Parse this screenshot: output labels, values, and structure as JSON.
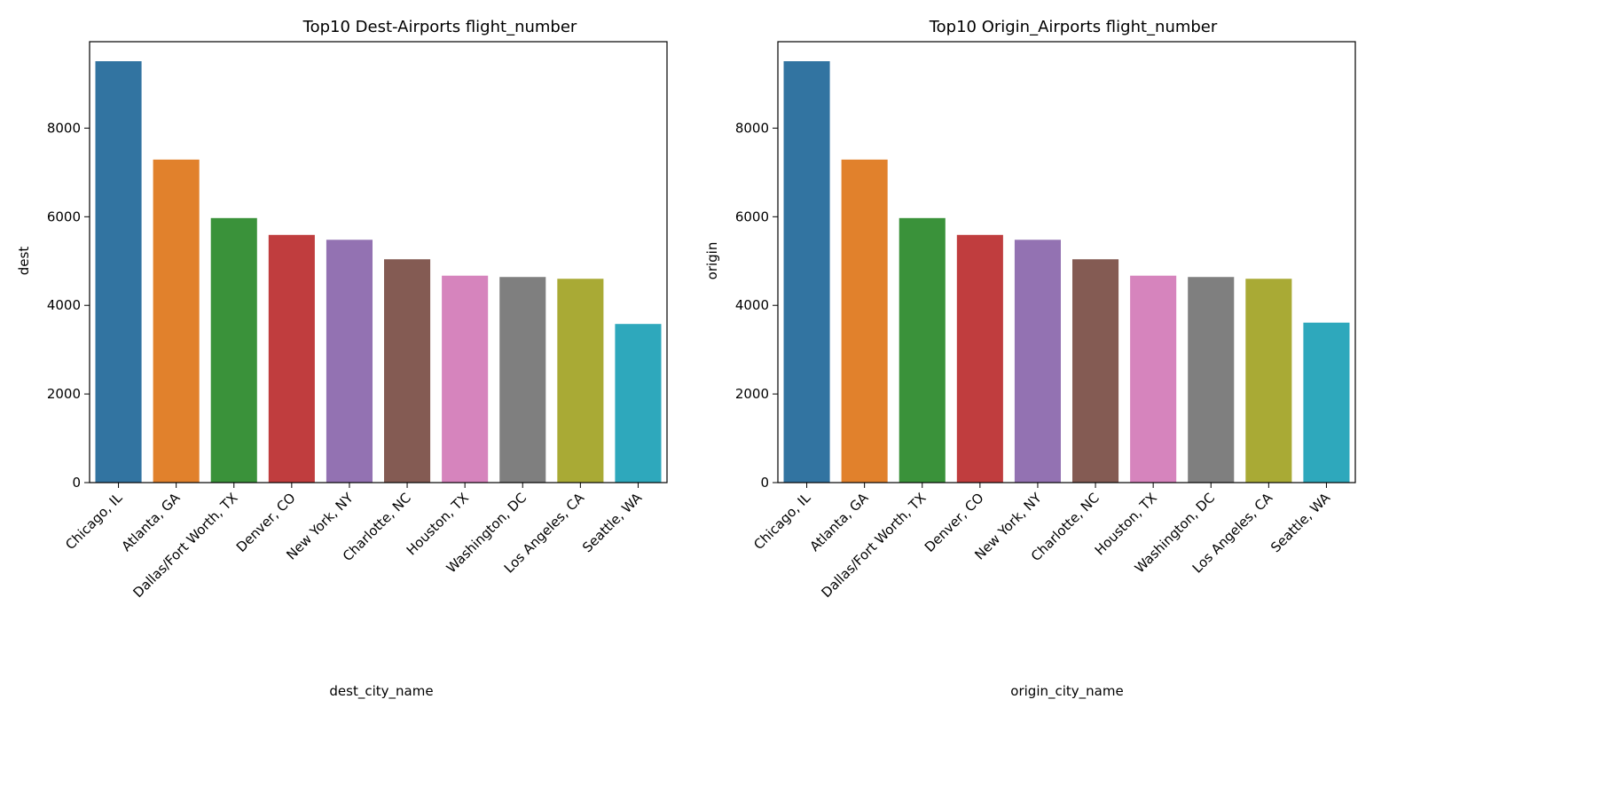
{
  "top_fragment": "",
  "chart_data": [
    {
      "type": "bar",
      "title": "Top10 Dest-Airports flight_number",
      "xlabel": "dest_city_name",
      "ylabel": "dest",
      "categories": [
        "Chicago, IL",
        "Atlanta, GA",
        "Dallas/Fort Worth, TX",
        "Denver, CO",
        "New York, NY",
        "Charlotte, NC",
        "Houston, TX",
        "Washington, DC",
        "Los Angeles, CA",
        "Seattle, WA"
      ],
      "values": [
        9510,
        7290,
        5970,
        5590,
        5480,
        5040,
        4670,
        4640,
        4600,
        3580
      ],
      "ylim": [
        0,
        9510
      ],
      "yticks": [
        0,
        2000,
        4000,
        6000,
        8000
      ],
      "colors": [
        "#3274a1",
        "#e1812c",
        "#3a923a",
        "#c03d3e",
        "#9372b2",
        "#845b53",
        "#d684bd",
        "#7f7f7f",
        "#a9aa35",
        "#2ea8bc"
      ],
      "grid": false,
      "legend": "none"
    },
    {
      "type": "bar",
      "title": "Top10 Origin_Airports flight_number",
      "xlabel": "origin_city_name",
      "ylabel": "origin",
      "categories": [
        "Chicago, IL",
        "Atlanta, GA",
        "Dallas/Fort Worth, TX",
        "Denver, CO",
        "New York, NY",
        "Charlotte, NC",
        "Houston, TX",
        "Washington, DC",
        "Los Angeles, CA",
        "Seattle, WA"
      ],
      "values": [
        9510,
        7290,
        5970,
        5590,
        5480,
        5040,
        4670,
        4640,
        4600,
        3610
      ],
      "ylim": [
        0,
        9510
      ],
      "yticks": [
        0,
        2000,
        4000,
        6000,
        8000
      ],
      "colors": [
        "#3274a1",
        "#e1812c",
        "#3a923a",
        "#c03d3e",
        "#9372b2",
        "#845b53",
        "#d684bd",
        "#7f7f7f",
        "#a9aa35",
        "#2ea8bc"
      ],
      "grid": false,
      "legend": "none"
    }
  ]
}
